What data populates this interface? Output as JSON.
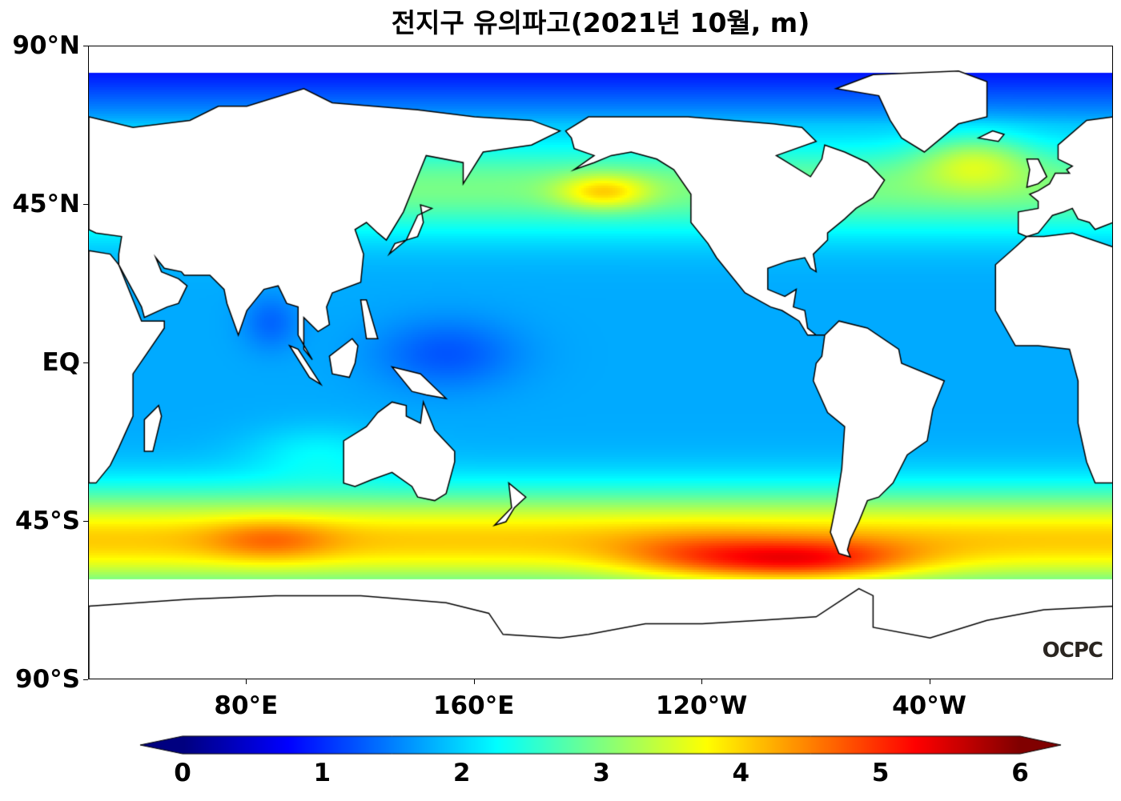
{
  "title": "전지구 유의파고(2021년 10월, m)",
  "map": {
    "projection": "plate-carree",
    "lon_range": [
      "24.5°E",
      "24.5°E (+360)"
    ],
    "lat_range": [
      "90°S",
      "90°N"
    ],
    "y_ticks": [
      {
        "label": "90°N",
        "lat": 90
      },
      {
        "label": "45°N",
        "lat": 45
      },
      {
        "label": "EQ",
        "lat": 0
      },
      {
        "label": "45°S",
        "lat": -45
      },
      {
        "label": "90°S",
        "lat": -90
      }
    ],
    "x_ticks": [
      {
        "label": "80°E",
        "lon": 80
      },
      {
        "label": "160°E",
        "lon": 160
      },
      {
        "label": "120°W",
        "lon": 240
      },
      {
        "label": "40°W",
        "lon": 320
      }
    ],
    "land_color": "#ffffff",
    "coastline_color": "#000000",
    "logo": "OCPC"
  },
  "colorbar": {
    "colormap": "jet",
    "min": 0,
    "max": 6,
    "extend": "both",
    "ticks": [
      "0",
      "1",
      "2",
      "3",
      "4",
      "5",
      "6"
    ]
  }
}
